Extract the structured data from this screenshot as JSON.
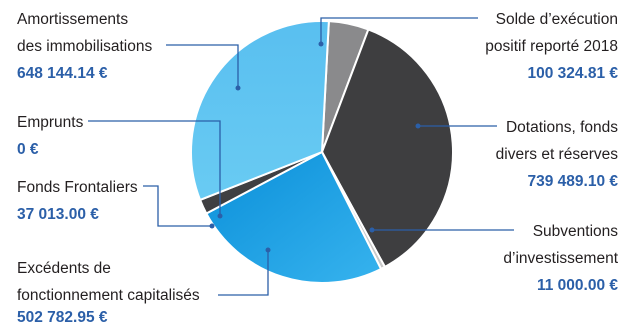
{
  "chart_data": {
    "type": "pie",
    "currency": "€",
    "slices": [
      {
        "label_lines": [
          "Solde d’exécution",
          "positif reporté 2018"
        ],
        "value": 100324.81,
        "value_text": "100 324.81 €",
        "color": "#8a8a8c"
      },
      {
        "label_lines": [
          "Dotations, fonds",
          "divers et réserves"
        ],
        "value": 739489.1,
        "value_text": "739 489.10 €",
        "color": "#3e3e40"
      },
      {
        "label_lines": [
          "Subventions",
          "d’investissement"
        ],
        "value": 11000.0,
        "value_text": "11 000.00 €",
        "color": "#bdbdbd"
      },
      {
        "label_lines": [
          "Excédents de",
          "fonctionnement capitalisés"
        ],
        "value": 502782.95,
        "value_text": "502 782.95 €",
        "color": "#1a9de0"
      },
      {
        "label_lines": [
          "Fonds Frontaliers"
        ],
        "value": 37013.0,
        "value_text": "37 013.00 €",
        "color": "#3a3a3c"
      },
      {
        "label_lines": [
          "Emprunts"
        ],
        "value": 0,
        "value_text": "0 €",
        "color": "#6cc8f0"
      },
      {
        "label_lines": [
          "Amortissements",
          "des immobilisations"
        ],
        "value": 648144.14,
        "value_text": "648 144.14 €",
        "color": "#5ec4f2"
      }
    ]
  }
}
